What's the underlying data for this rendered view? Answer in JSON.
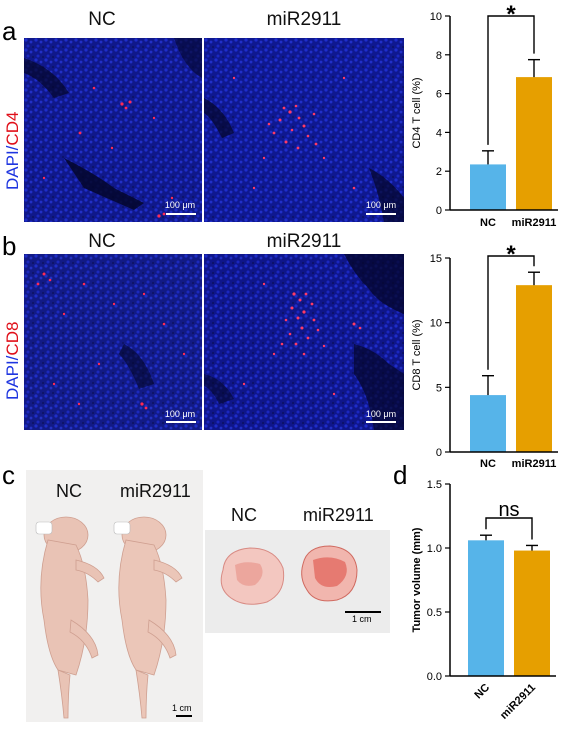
{
  "panel_a": {
    "label": "a",
    "stain": {
      "prefix": "DAPI",
      "slash": "/",
      "marker": "CD4"
    },
    "columns": [
      "NC",
      "miR2911"
    ],
    "scale_bar": "100 μm"
  },
  "panel_b": {
    "label": "b",
    "stain": {
      "prefix": "DAPI",
      "slash": "/",
      "marker": "CD8"
    },
    "columns": [
      "NC",
      "miR2911"
    ],
    "scale_bar": "100 μm"
  },
  "panel_c": {
    "label": "c",
    "mice_labels": [
      "NC",
      "miR2911"
    ],
    "mice_scale": "1 cm",
    "tumor_labels": [
      "NC",
      "miR2911"
    ],
    "tumor_scale": "1 cm"
  },
  "panel_d": {
    "label": "d"
  },
  "colors": {
    "nc": "#56b4e9",
    "mir": "#e69f00",
    "dapi": "#1e35e0",
    "marker": "#e0101a"
  },
  "chart_data": [
    {
      "type": "bar",
      "categories": [
        "NC",
        "miR2911"
      ],
      "values": [
        2.35,
        6.85
      ],
      "errors": [
        0.7,
        0.9
      ],
      "ylabel": "CD4 T cell (%)",
      "ylim": [
        0,
        10
      ],
      "yticks": [
        0,
        2,
        4,
        6,
        8,
        10
      ],
      "significance": "*"
    },
    {
      "type": "bar",
      "categories": [
        "NC",
        "miR2911"
      ],
      "values": [
        4.4,
        12.9
      ],
      "errors": [
        1.5,
        1.0
      ],
      "ylabel": "CD8 T cell (%)",
      "ylim": [
        0,
        15
      ],
      "yticks": [
        0,
        5,
        10,
        15
      ],
      "significance": "*"
    },
    {
      "type": "bar",
      "categories": [
        "NC",
        "miR2911"
      ],
      "values": [
        1.06,
        0.98
      ],
      "errors": [
        0.04,
        0.04
      ],
      "ylabel": "Tumor volume (mm)",
      "ylim": [
        0,
        1.5
      ],
      "yticks": [
        "0.0",
        "0.5",
        "1.0",
        "1.5"
      ],
      "significance": "ns"
    }
  ]
}
